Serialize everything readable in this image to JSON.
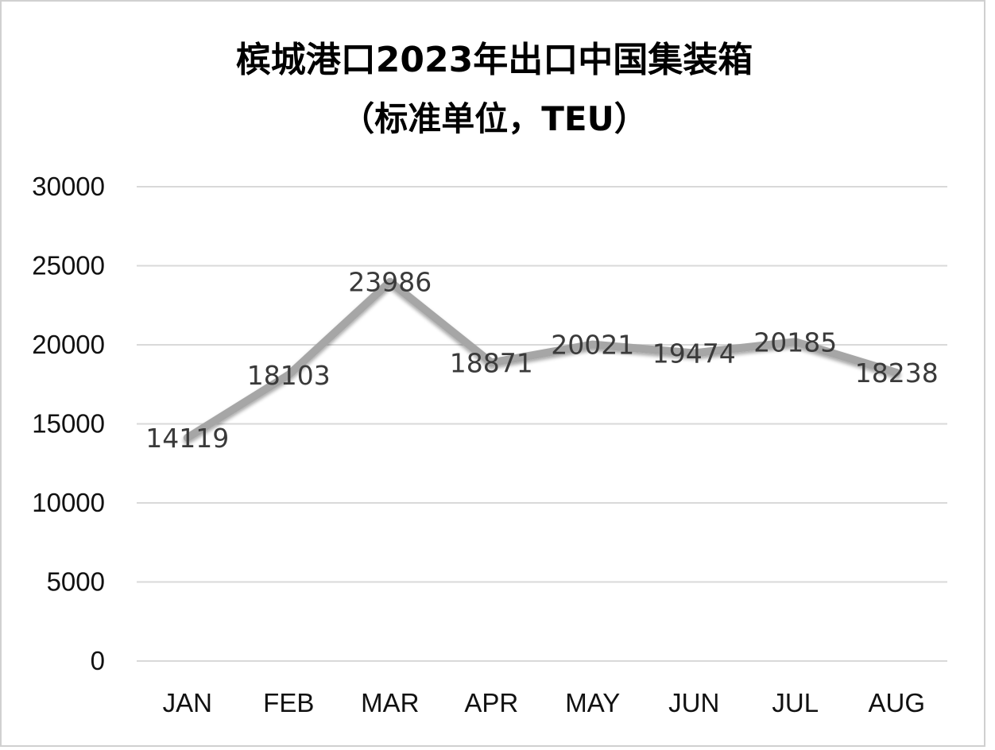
{
  "chart_data": {
    "type": "line",
    "title": "槟城港口2023年出口中国集装箱",
    "subtitle": "（标准单位，TEU）",
    "xlabel": "",
    "ylabel": "",
    "categories": [
      "JAN",
      "FEB",
      "MAR",
      "APR",
      "MAY",
      "JUN",
      "JUL",
      "AUG"
    ],
    "series": [
      {
        "values": [
          14119,
          18103,
          23986,
          18871,
          20021,
          19474,
          20185,
          18238
        ]
      }
    ],
    "data_labels": [
      "14119",
      "18103",
      "23986",
      "18871",
      "20021",
      "19474",
      "20185",
      "18238"
    ],
    "ylim": [
      0,
      30000
    ],
    "yticks": [
      0,
      5000,
      10000,
      15000,
      20000,
      25000,
      30000
    ],
    "ytick_labels": [
      "0",
      "5000",
      "10000",
      "15000",
      "20000",
      "25000",
      "30000"
    ],
    "grid": true,
    "legend": "none",
    "colors": {
      "line": "#a6a6a6",
      "gridline": "#d9d9d9",
      "label": "#3a3a3a",
      "axis_text": "#111111"
    }
  }
}
